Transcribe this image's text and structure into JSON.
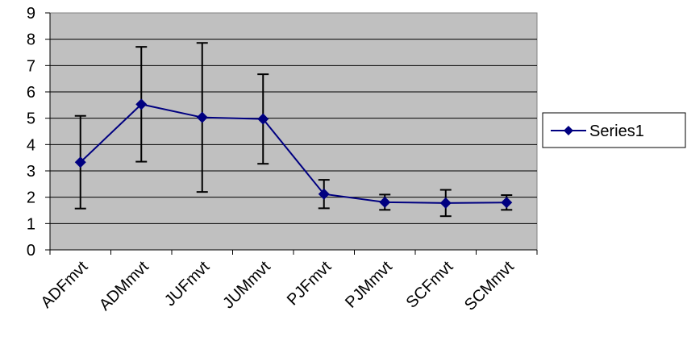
{
  "chart_data": {
    "type": "line",
    "categories": [
      "ADFmvt",
      "ADMmvt",
      "JUFmvt",
      "JUMmvt",
      "PJFmvt",
      "PJMmvt",
      "SCFmvt",
      "SCMmvt"
    ],
    "series": [
      {
        "name": "Series1",
        "values": [
          3.33,
          5.53,
          5.03,
          4.97,
          2.12,
          1.81,
          1.78,
          1.8
        ],
        "error_low": [
          1.57,
          3.35,
          2.2,
          3.27,
          1.58,
          1.52,
          1.28,
          1.52
        ],
        "error_high": [
          5.09,
          7.71,
          7.86,
          6.67,
          2.66,
          2.1,
          2.28,
          2.08
        ],
        "color": "#000080",
        "marker": "diamond"
      }
    ],
    "y_ticks": [
      "0",
      "1",
      "2",
      "3",
      "4",
      "5",
      "6",
      "7",
      "8",
      "9"
    ],
    "ylim": [
      0,
      9
    ],
    "grid": true,
    "legend_position": "right",
    "plot_background": "#c0c0c0",
    "error_bar_color": "#000000"
  }
}
